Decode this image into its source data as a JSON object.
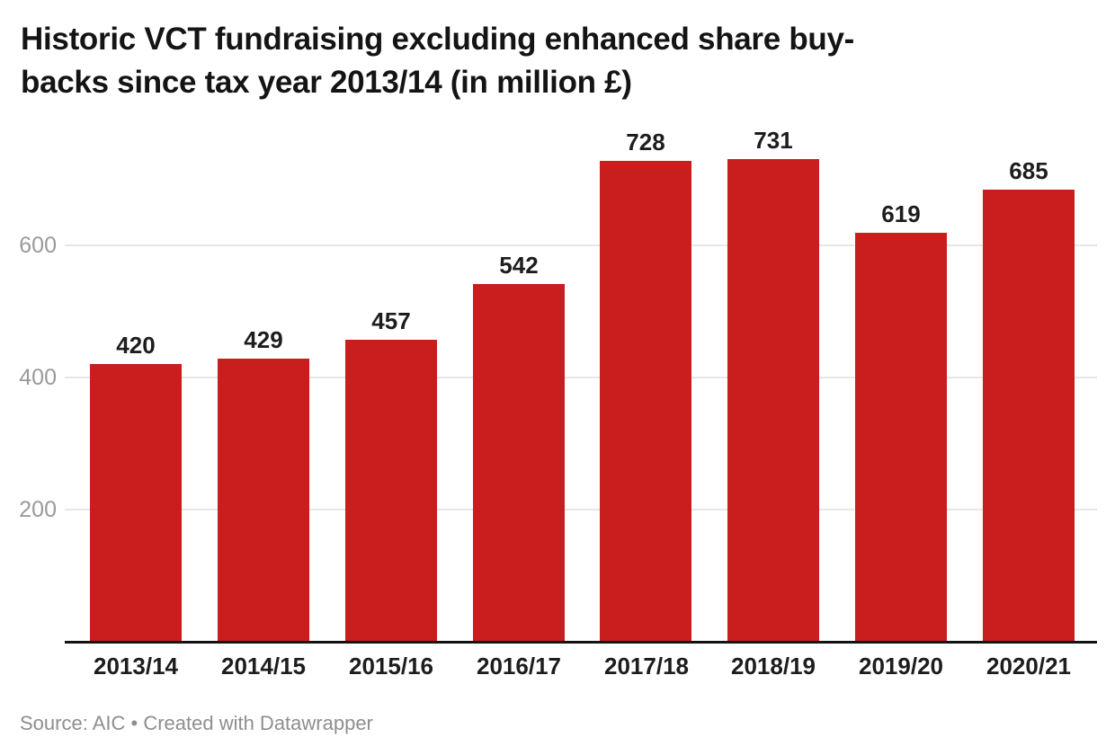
{
  "title": {
    "line1": "Historic VCT fundraising excluding enhanced share buy-",
    "line2": "backs since tax year 2013/14 (in million £)"
  },
  "footer": {
    "text": "Source: AIC • Created with Datawrapper"
  },
  "chart_data": {
    "type": "bar",
    "title": "Historic VCT fundraising excluding enhanced share buy-backs since tax year 2013/14 (in million £)",
    "categories": [
      "2013/14",
      "2014/15",
      "2015/16",
      "2016/17",
      "2017/18",
      "2018/19",
      "2019/20",
      "2020/21"
    ],
    "values": [
      420,
      429,
      457,
      542,
      728,
      731,
      619,
      685
    ],
    "xlabel": "",
    "ylabel": "",
    "ylim": [
      0,
      780
    ],
    "yticks": [
      200,
      400,
      600
    ],
    "grid": true,
    "legend": false,
    "value_labels": true,
    "source": "AIC",
    "credit": "Created with Datawrapper"
  },
  "colors": {
    "bar": "#c81e1d",
    "gridline": "#e7e7e7",
    "axis_line": "#131313",
    "title_text": "#141414",
    "tick_label": "#1d1d1d",
    "y_tick_label": "#9a9a9a",
    "footer_text": "#8e8e8e",
    "background": "#ffffff"
  }
}
